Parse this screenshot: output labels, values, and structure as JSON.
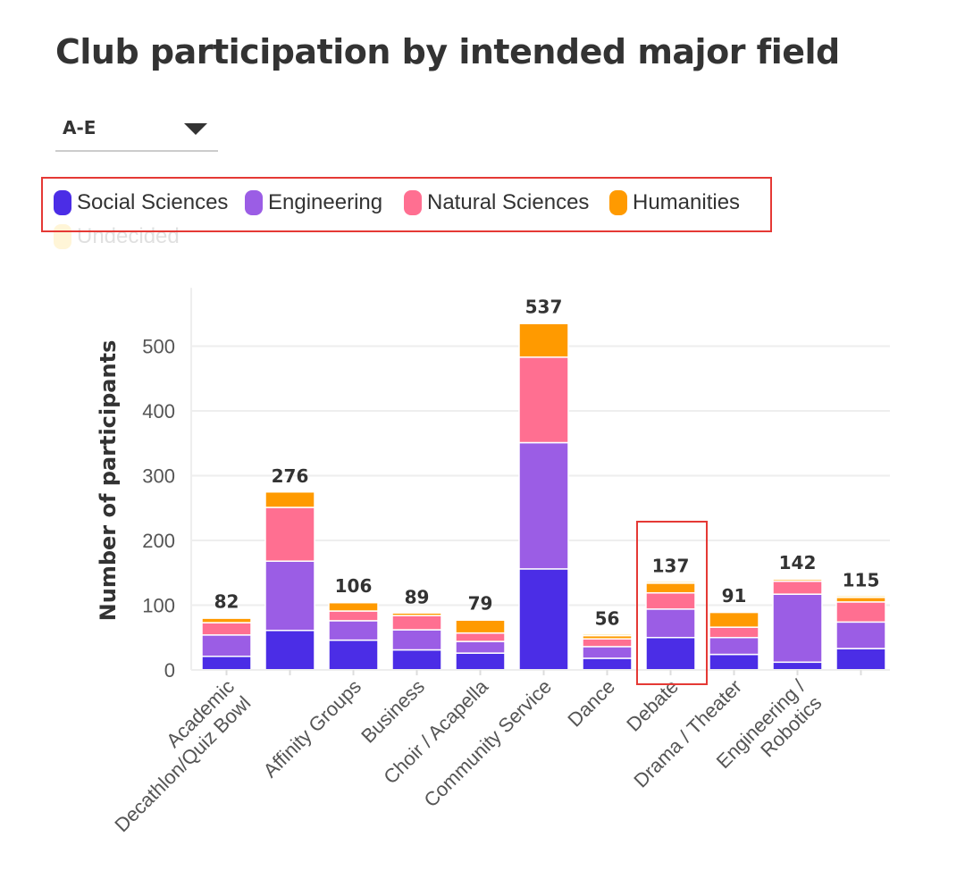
{
  "page": {
    "title": "Club participation by intended major field",
    "filter": {
      "selected": "A-E",
      "caret_icon": "caret-down-icon"
    }
  },
  "legend": {
    "items": [
      {
        "label": "Social Sciences",
        "color": "#4b2de6",
        "muted": false
      },
      {
        "label": "Engineering",
        "color": "#9b5de5",
        "muted": false
      },
      {
        "label": "Natural Sciences",
        "color": "#ff6f91",
        "muted": false
      },
      {
        "label": "Humanities",
        "color": "#ff9a00",
        "muted": false
      },
      {
        "label": "Undecided",
        "color": "#ffe9a8",
        "muted": true
      }
    ]
  },
  "chart_data": {
    "type": "bar",
    "stacked": true,
    "title": "Club participation by intended major field",
    "ylabel": "Number of participants",
    "xlabel": "",
    "ylim": [
      0,
      590
    ],
    "yticks": [
      0,
      100,
      200,
      300,
      400,
      500
    ],
    "grid": true,
    "categories": [
      "Academic Decathlon/Quiz Bowl",
      "",
      "Affinity Groups",
      "Business",
      "Choir / Acapella",
      "Community Service",
      "Dance",
      "Debate",
      "Drama / Theater",
      "Engineering / Robotics",
      ""
    ],
    "category_label_lines": [
      [
        "Academic",
        "Decathlon/Quiz Bowl"
      ],
      [],
      [
        "Affinity Groups"
      ],
      [
        "Business"
      ],
      [
        "Choir / Acapella"
      ],
      [
        "Community Service"
      ],
      [
        "Dance"
      ],
      [
        "Debate"
      ],
      [
        "Drama / Theater"
      ],
      [
        "Engineering /",
        "Robotics"
      ],
      []
    ],
    "series": [
      {
        "name": "Social Sciences",
        "color": "#4b2de6",
        "values": [
          21,
          61,
          46,
          31,
          26,
          156,
          18,
          50,
          24,
          12,
          33
        ]
      },
      {
        "name": "Engineering",
        "color": "#9b5de5",
        "values": [
          33,
          107,
          30,
          31,
          18,
          195,
          18,
          44,
          26,
          105,
          41
        ]
      },
      {
        "name": "Natural Sciences",
        "color": "#ff6f91",
        "values": [
          19,
          83,
          15,
          22,
          13,
          132,
          12,
          25,
          16,
          20,
          31
        ]
      },
      {
        "name": "Humanities",
        "color": "#ff9a00",
        "values": [
          7,
          24,
          13,
          4,
          20,
          52,
          5,
          15,
          23,
          3,
          7
        ]
      },
      {
        "name": "Undecided",
        "color": "#ffe9a8",
        "values": [
          2,
          1,
          2,
          1,
          2,
          2,
          3,
          3,
          2,
          2,
          3
        ]
      }
    ],
    "totals": [
      82,
      276,
      106,
      89,
      79,
      537,
      56,
      137,
      91,
      142,
      115
    ]
  }
}
